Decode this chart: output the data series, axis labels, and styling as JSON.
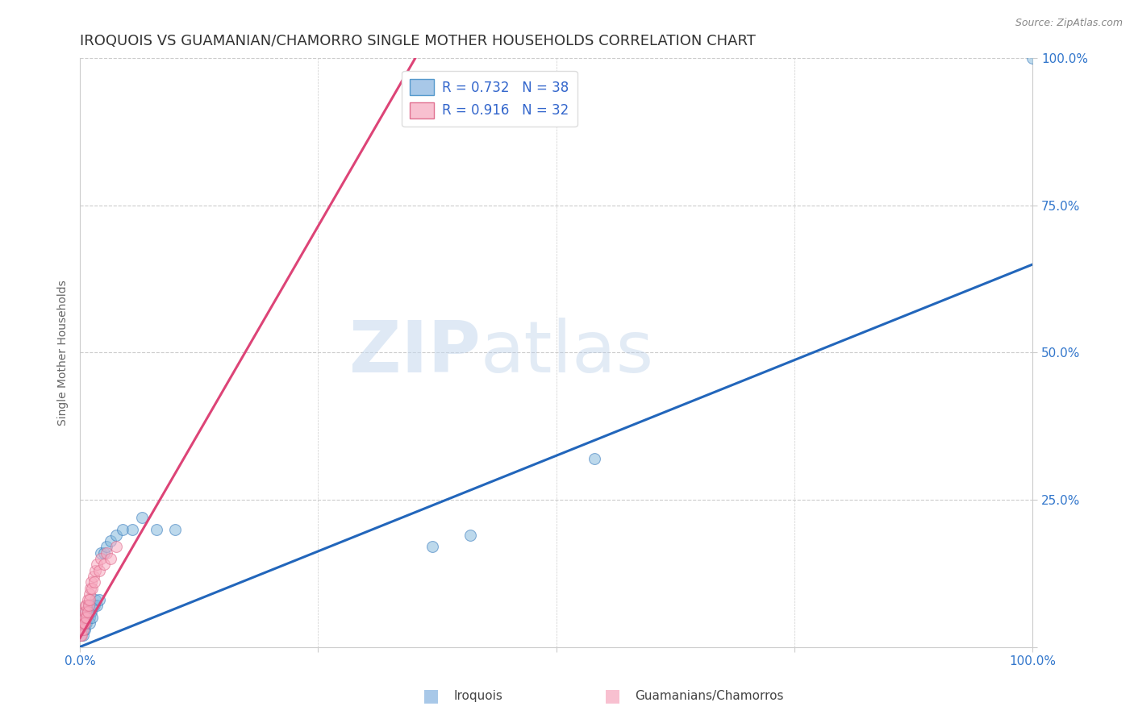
{
  "title": "IROQUOIS VS GUAMANIAN/CHAMORRO SINGLE MOTHER HOUSEHOLDS CORRELATION CHART",
  "source": "Source: ZipAtlas.com",
  "ylabel": "Single Mother Households",
  "watermark_zip": "ZIP",
  "watermark_atlas": "atlas",
  "legend_entries": [
    {
      "label": "Iroquois",
      "R": "0.732",
      "N": "38",
      "face_color": "#a8c8e8",
      "edge_color": "#5599cc"
    },
    {
      "label": "Guamanians/Chamorros",
      "R": "0.916",
      "N": "32",
      "face_color": "#f8c0d0",
      "edge_color": "#e07090"
    }
  ],
  "iroquois_color": "#88bbdd",
  "iroquois_edge": "#3377bb",
  "iroquois_line_color": "#2266bb",
  "guam_color": "#f8aac0",
  "guam_edge": "#dd6688",
  "guam_line_color": "#dd4477",
  "iroquois_scatter_x": [
    0.001,
    0.002,
    0.003,
    0.004,
    0.004,
    0.005,
    0.005,
    0.006,
    0.006,
    0.007,
    0.007,
    0.008,
    0.008,
    0.009,
    0.01,
    0.01,
    0.011,
    0.012,
    0.013,
    0.014,
    0.015,
    0.016,
    0.018,
    0.02,
    0.022,
    0.025,
    0.028,
    0.032,
    0.038,
    0.045,
    0.055,
    0.065,
    0.08,
    0.1,
    0.37,
    0.41,
    0.54,
    1.0
  ],
  "iroquois_scatter_y": [
    0.02,
    0.03,
    0.02,
    0.04,
    0.03,
    0.05,
    0.03,
    0.04,
    0.06,
    0.05,
    0.04,
    0.06,
    0.05,
    0.07,
    0.05,
    0.04,
    0.06,
    0.06,
    0.05,
    0.07,
    0.07,
    0.08,
    0.07,
    0.08,
    0.16,
    0.16,
    0.17,
    0.18,
    0.19,
    0.2,
    0.2,
    0.22,
    0.2,
    0.2,
    0.17,
    0.19,
    0.32,
    1.0
  ],
  "guam_scatter_x": [
    0.001,
    0.001,
    0.002,
    0.002,
    0.003,
    0.003,
    0.004,
    0.004,
    0.005,
    0.005,
    0.006,
    0.006,
    0.007,
    0.007,
    0.008,
    0.008,
    0.009,
    0.01,
    0.01,
    0.011,
    0.012,
    0.013,
    0.014,
    0.015,
    0.016,
    0.018,
    0.02,
    0.022,
    0.025,
    0.028,
    0.032,
    0.038
  ],
  "guam_scatter_y": [
    0.02,
    0.03,
    0.02,
    0.04,
    0.03,
    0.05,
    0.04,
    0.06,
    0.05,
    0.04,
    0.07,
    0.06,
    0.05,
    0.07,
    0.06,
    0.08,
    0.07,
    0.09,
    0.08,
    0.1,
    0.11,
    0.1,
    0.12,
    0.11,
    0.13,
    0.14,
    0.13,
    0.15,
    0.14,
    0.16,
    0.15,
    0.17
  ],
  "iroquois_line": [
    0.0,
    1.0,
    0.0,
    0.65
  ],
  "guam_line_start_x": 0.0,
  "guam_line_start_y": 0.015,
  "guam_line_slope": 2.8,
  "xlim": [
    0.0,
    1.0
  ],
  "ylim": [
    0.0,
    1.0
  ],
  "ytick_values": [
    0.0,
    0.25,
    0.5,
    0.75,
    1.0
  ],
  "ytick_labels": [
    "",
    "25.0%",
    "50.0%",
    "75.0%",
    "100.0%"
  ],
  "xtick_values": [
    0.0,
    0.25,
    0.5,
    0.75,
    1.0
  ],
  "xtick_labels": [
    "0.0%",
    "",
    "",
    "",
    "100.0%"
  ],
  "background_color": "#ffffff",
  "grid_color": "#cccccc",
  "title_fontsize": 13,
  "tick_fontsize": 11,
  "marker_size": 100,
  "marker_alpha": 0.55,
  "line_width": 2.2
}
